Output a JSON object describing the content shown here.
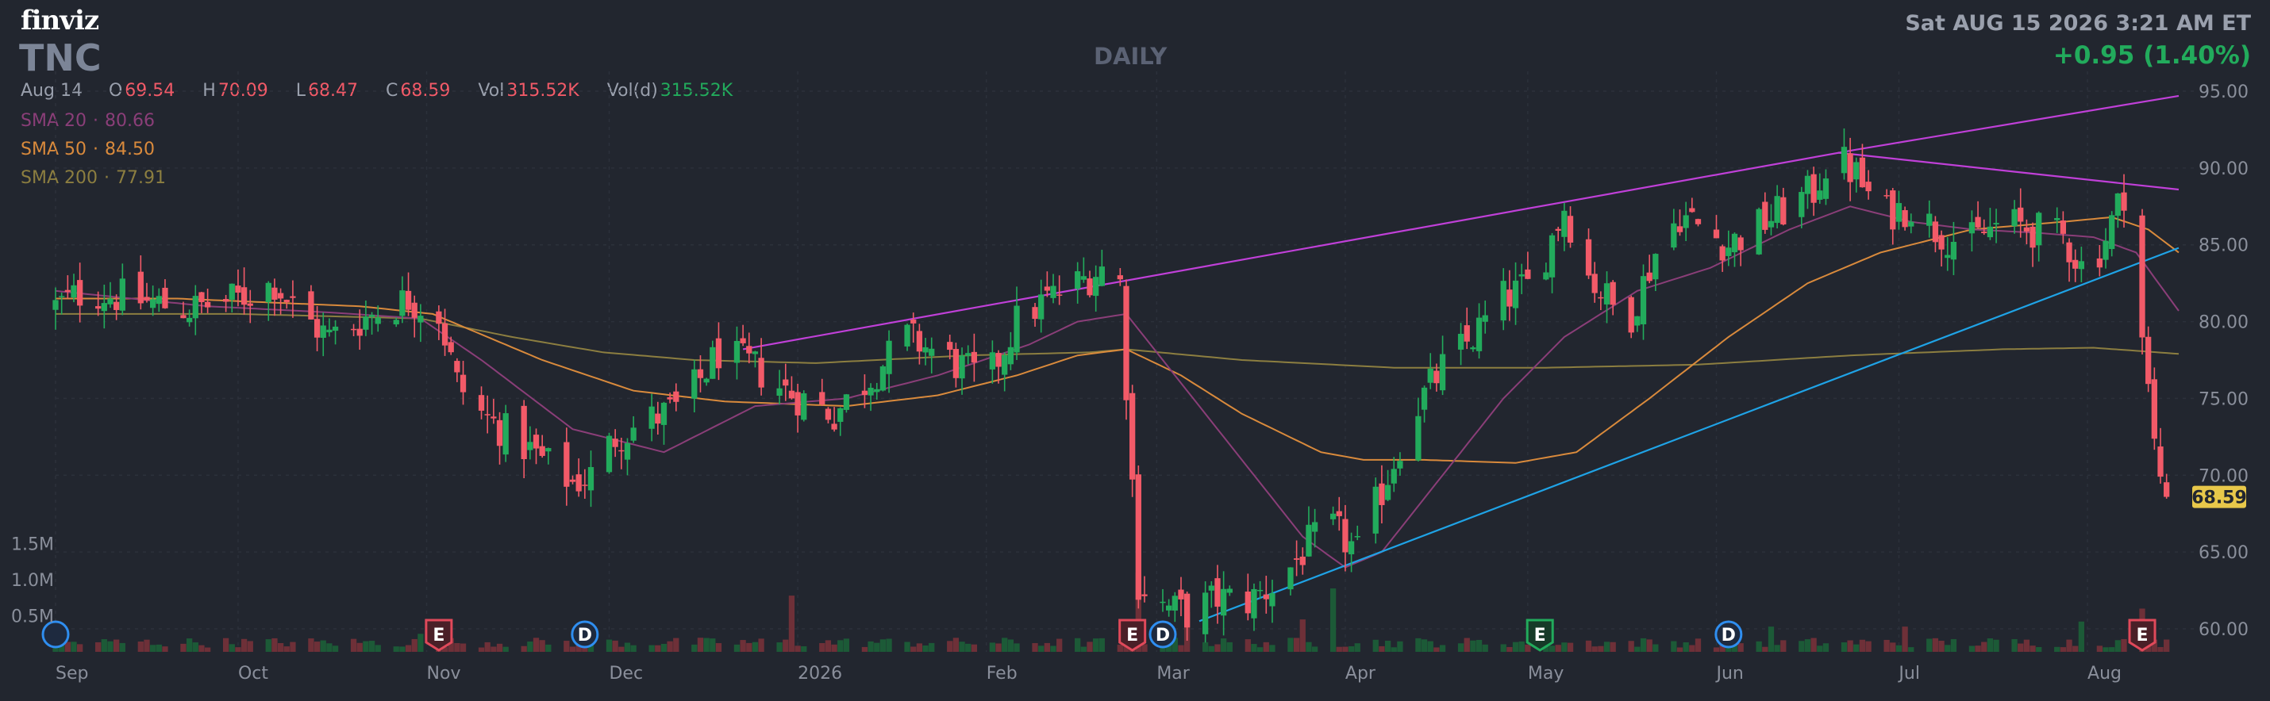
{
  "header": {
    "logo": "finviz",
    "ticker": "TNC",
    "period": "DAILY",
    "datetime": "Sat AUG 15 2026 3:21 AM ET",
    "change": "+0.95 (1.40%)"
  },
  "ohlc": {
    "date": "Aug 14",
    "open_label": "O",
    "open": "69.54",
    "high_label": "H",
    "high": "70.09",
    "low_label": "L",
    "low": "68.47",
    "close_label": "C",
    "close": "68.59",
    "vol_label": "Vol",
    "vol": "315.52K",
    "vold_label": "Vol(d)",
    "vold": "315.52K"
  },
  "sma_legend": {
    "sma20": {
      "label": "SMA 20",
      "value": "80.66"
    },
    "sma50": {
      "label": "SMA 50",
      "value": "84.50"
    },
    "sma200": {
      "label": "SMA 200",
      "value": "77.91"
    }
  },
  "colors": {
    "background": "#22262f",
    "up": "#22ab5c",
    "down": "#f25a68",
    "sma20": "#8a3e78",
    "sma50": "#d98a3c",
    "sma200": "#8c7e40",
    "trendline_magenta": "#c040d8",
    "trendline_blue": "#1fa3e6",
    "last_price_tag": "#e8c84a"
  },
  "chart_data": {
    "type": "candlestick",
    "title": "",
    "xlabel": "",
    "ylabel": "",
    "y_ticks": [
      95,
      90,
      85,
      80,
      75,
      70,
      65,
      60
    ],
    "y_tick_labels": [
      "95.00",
      "90.00",
      "85.00",
      "80.00",
      "75.00",
      "70.00",
      "65.00",
      "60.00"
    ],
    "ylim": [
      58.5,
      96.5
    ],
    "volume_ticks": [
      "1.5M",
      "1.0M",
      "0.5M"
    ],
    "volume_tick_values": [
      1.5,
      1.0,
      0.5
    ],
    "volume_max": 1.65,
    "last_price": 68.59,
    "last_price_label": "68.59",
    "x_labels": [
      {
        "label": "Sep",
        "day": 0
      },
      {
        "label": "Oct",
        "day": 30
      },
      {
        "label": "Nov",
        "day": 61
      },
      {
        "label": "Dec",
        "day": 91
      },
      {
        "label": "2026",
        "day": 122
      },
      {
        "label": "Feb",
        "day": 153
      },
      {
        "label": "Mar",
        "day": 181
      },
      {
        "label": "Apr",
        "day": 212
      },
      {
        "label": "May",
        "day": 242
      },
      {
        "label": "Jun",
        "day": 273
      },
      {
        "label": "Jul",
        "day": 303
      },
      {
        "label": "Aug",
        "day": 334
      }
    ],
    "first_day": 0,
    "last_day": 349,
    "price_keyframes": [
      [
        0,
        81.0
      ],
      [
        5,
        82.0
      ],
      [
        12,
        81.5
      ],
      [
        22,
        80.8
      ],
      [
        30,
        81.5
      ],
      [
        36,
        82.5
      ],
      [
        40,
        80.5
      ],
      [
        45,
        79.0
      ],
      [
        52,
        80.5
      ],
      [
        58,
        81.5
      ],
      [
        63,
        80.5
      ],
      [
        66,
        76.0
      ],
      [
        70,
        74.0
      ],
      [
        75,
        72.5
      ],
      [
        80,
        71.0
      ],
      [
        85,
        69.5
      ],
      [
        88,
        70.0
      ],
      [
        92,
        72.5
      ],
      [
        97,
        73.5
      ],
      [
        103,
        74.5
      ],
      [
        109,
        78.0
      ],
      [
        115,
        77.0
      ],
      [
        120,
        75.5
      ],
      [
        128,
        74.0
      ],
      [
        133,
        76.0
      ],
      [
        140,
        79.0
      ],
      [
        147,
        77.5
      ],
      [
        153,
        76.0
      ],
      [
        158,
        80.0
      ],
      [
        163,
        81.5
      ],
      [
        168,
        82.5
      ],
      [
        172,
        83.5
      ],
      [
        175,
        82.5
      ],
      [
        178,
        63.0
      ],
      [
        182,
        61.5
      ],
      [
        186,
        61.0
      ],
      [
        191,
        62.0
      ],
      [
        196,
        61.8
      ],
      [
        201,
        63.0
      ],
      [
        206,
        65.5
      ],
      [
        210,
        66.5
      ],
      [
        214,
        65.0
      ],
      [
        219,
        70.0
      ],
      [
        223,
        74.0
      ],
      [
        228,
        77.0
      ],
      [
        233,
        79.0
      ],
      [
        238,
        81.5
      ],
      [
        243,
        82.5
      ],
      [
        248,
        87.5
      ],
      [
        252,
        83.0
      ],
      [
        256,
        81.0
      ],
      [
        259,
        80.5
      ],
      [
        263,
        84.5
      ],
      [
        267,
        87.0
      ],
      [
        271,
        86.0
      ],
      [
        275,
        85.0
      ],
      [
        279,
        86.0
      ],
      [
        285,
        87.5
      ],
      [
        289,
        88.5
      ],
      [
        292,
        91.0
      ],
      [
        296,
        89.5
      ],
      [
        300,
        87.0
      ],
      [
        305,
        87.5
      ],
      [
        309,
        86.0
      ],
      [
        314,
        85.0
      ],
      [
        320,
        86.5
      ],
      [
        325,
        86.0
      ],
      [
        330,
        85.5
      ],
      [
        334,
        83.0
      ],
      [
        337,
        85.5
      ],
      [
        340,
        88.5
      ],
      [
        343,
        79.0
      ],
      [
        345,
        72.0
      ],
      [
        347,
        68.0
      ],
      [
        349,
        68.6
      ]
    ],
    "sma20_keyframes": [
      [
        0,
        82.0
      ],
      [
        25,
        81.0
      ],
      [
        45,
        80.6
      ],
      [
        60,
        80.2
      ],
      [
        70,
        77.5
      ],
      [
        85,
        73.0
      ],
      [
        100,
        71.5
      ],
      [
        115,
        74.5
      ],
      [
        130,
        75.0
      ],
      [
        145,
        76.5
      ],
      [
        160,
        78.5
      ],
      [
        168,
        80.0
      ],
      [
        176,
        80.5
      ],
      [
        185,
        76.0
      ],
      [
        195,
        71.0
      ],
      [
        205,
        66.0
      ],
      [
        212,
        64.0
      ],
      [
        218,
        65.0
      ],
      [
        228,
        70.0
      ],
      [
        238,
        75.0
      ],
      [
        248,
        79.0
      ],
      [
        260,
        82.0
      ],
      [
        272,
        83.5
      ],
      [
        285,
        86.0
      ],
      [
        295,
        87.5
      ],
      [
        305,
        86.5
      ],
      [
        315,
        86.0
      ],
      [
        325,
        85.8
      ],
      [
        335,
        85.5
      ],
      [
        342,
        84.5
      ],
      [
        349,
        80.7
      ]
    ],
    "sma50_keyframes": [
      [
        0,
        81.5
      ],
      [
        20,
        81.5
      ],
      [
        50,
        81.0
      ],
      [
        62,
        80.5
      ],
      [
        80,
        77.5
      ],
      [
        95,
        75.5
      ],
      [
        110,
        74.8
      ],
      [
        130,
        74.5
      ],
      [
        145,
        75.2
      ],
      [
        158,
        76.5
      ],
      [
        168,
        77.8
      ],
      [
        176,
        78.2
      ],
      [
        185,
        76.5
      ],
      [
        195,
        74.0
      ],
      [
        208,
        71.5
      ],
      [
        215,
        71.0
      ],
      [
        225,
        71.0
      ],
      [
        240,
        70.8
      ],
      [
        250,
        71.5
      ],
      [
        262,
        75.0
      ],
      [
        275,
        79.0
      ],
      [
        288,
        82.5
      ],
      [
        300,
        84.5
      ],
      [
        315,
        86.0
      ],
      [
        330,
        86.5
      ],
      [
        338,
        86.8
      ],
      [
        344,
        86.0
      ],
      [
        349,
        84.5
      ]
    ],
    "sma200_keyframes": [
      [
        0,
        80.5
      ],
      [
        30,
        80.5
      ],
      [
        60,
        80.2
      ],
      [
        75,
        79.0
      ],
      [
        90,
        78.0
      ],
      [
        105,
        77.5
      ],
      [
        125,
        77.3
      ],
      [
        150,
        77.8
      ],
      [
        170,
        78.0
      ],
      [
        176,
        78.2
      ],
      [
        195,
        77.5
      ],
      [
        220,
        77.0
      ],
      [
        245,
        77.0
      ],
      [
        270,
        77.2
      ],
      [
        295,
        77.8
      ],
      [
        320,
        78.2
      ],
      [
        335,
        78.3
      ],
      [
        349,
        77.9
      ]
    ],
    "trendlines": [
      {
        "name": "",
        "color": "magenta",
        "points": [
          [
            113,
            78.2
          ],
          [
            296,
            91.2
          ],
          [
            349,
            94.7
          ]
        ]
      },
      {
        "name": "",
        "color": "magenta",
        "points": [
          [
            293,
            91.0
          ],
          [
            349,
            88.6
          ]
        ]
      },
      {
        "name": "",
        "color": "blue",
        "points": [
          [
            188,
            60.5
          ],
          [
            349,
            84.8
          ]
        ]
      }
    ],
    "volume_spikes": [
      [
        60,
        0.25
      ],
      [
        75,
        0.15
      ],
      [
        110,
        0.18
      ],
      [
        121,
        0.78
      ],
      [
        178,
        1.1
      ],
      [
        180,
        0.62
      ],
      [
        186,
        0.55
      ],
      [
        205,
        0.45
      ],
      [
        210,
        0.88
      ],
      [
        244,
        0.42
      ],
      [
        282,
        0.35
      ],
      [
        304,
        0.35
      ],
      [
        333,
        0.42
      ],
      [
        343,
        0.6
      ]
    ],
    "events": [
      {
        "day": 0,
        "label": "",
        "type": "dividend"
      },
      {
        "day": 63,
        "label": "E",
        "type": "earnings-red"
      },
      {
        "day": 87,
        "label": "D",
        "type": "dividend"
      },
      {
        "day": 177,
        "label": "E",
        "type": "earnings-red"
      },
      {
        "day": 182,
        "label": "D",
        "type": "dividend"
      },
      {
        "day": 244,
        "label": "E",
        "type": "earnings-green"
      },
      {
        "day": 275,
        "label": "D",
        "type": "dividend"
      },
      {
        "day": 343,
        "label": "E",
        "type": "earnings-red"
      }
    ]
  }
}
